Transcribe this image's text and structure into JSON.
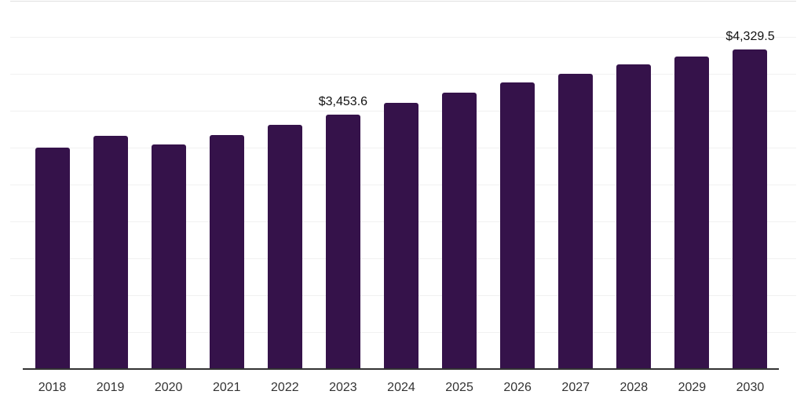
{
  "chart_data": {
    "type": "bar",
    "title": "",
    "xlabel": "",
    "ylabel": "",
    "categories": [
      "2018",
      "2019",
      "2020",
      "2021",
      "2022",
      "2023",
      "2024",
      "2025",
      "2026",
      "2027",
      "2028",
      "2029",
      "2030"
    ],
    "values": [
      3002,
      3161,
      3044,
      3169,
      3307,
      3453.6,
      3609,
      3744,
      3883,
      4005,
      4133,
      4237,
      4329.5
    ],
    "data_labels": [
      "",
      "",
      "",
      "",
      "",
      "$3,453.6",
      "",
      "",
      "",
      "",
      "",
      "",
      "$4,329.5"
    ],
    "ylim": [
      0,
      5000
    ],
    "gridline_step": 500,
    "grid": "horizontal-only",
    "legend": "none",
    "y_axis_labels_visible": false,
    "colors": {
      "bar": "#35124A",
      "axis_line": "#333333",
      "gridline": "#f1f1f1",
      "top_gridline": "#e0e0e0",
      "tick_label": "#333333",
      "data_label": "#111111",
      "background": "#ffffff"
    }
  }
}
